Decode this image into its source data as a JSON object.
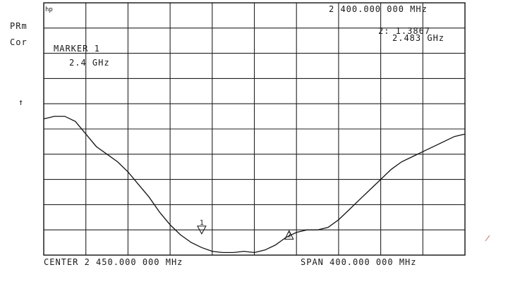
{
  "instrument": {
    "logo": "hp",
    "side_labels": [
      "PRm",
      "Cor"
    ],
    "up_arrow": "↑"
  },
  "header": {
    "marker_frequency": "2  400.000 000 MHz",
    "delta_marker_line1": "2: 1.3867",
    "delta_marker_line2": "2.483 GHz",
    "marker_title": "MARKER 1",
    "marker_value": "2.4 GHz"
  },
  "footer": {
    "center": "CENTER  2  450.000 000  MHz",
    "span": "SPAN    400.000 000  MHz"
  },
  "chart_data": {
    "type": "line",
    "title": "",
    "xlabel": "",
    "ylabel": "",
    "x_unit": "GHz",
    "xlim": [
      2.25,
      2.65
    ],
    "ylim": [
      0,
      10
    ],
    "grid": true,
    "grid_divisions": {
      "x": 10,
      "y": 10
    },
    "series": [
      {
        "x": [
          2.25,
          2.26,
          2.27,
          2.28,
          2.29,
          2.3,
          2.31,
          2.32,
          2.33,
          2.34,
          2.35,
          2.36,
          2.37,
          2.38,
          2.39,
          2.4,
          2.41,
          2.42,
          2.43,
          2.44,
          2.45,
          2.46,
          2.47,
          2.48,
          2.49,
          2.5,
          2.51,
          2.52,
          2.53,
          2.54,
          2.55,
          2.56,
          2.57,
          2.58,
          2.59,
          2.6,
          2.61,
          2.62,
          2.63,
          2.64,
          2.65
        ],
        "values": [
          5.4,
          5.5,
          5.5,
          5.3,
          4.8,
          4.3,
          4.0,
          3.7,
          3.3,
          2.8,
          2.3,
          1.7,
          1.2,
          0.8,
          0.5,
          0.3,
          0.15,
          0.1,
          0.1,
          0.15,
          0.1,
          0.2,
          0.4,
          0.7,
          0.9,
          1.0,
          1.0,
          1.1,
          1.4,
          1.8,
          2.2,
          2.6,
          3.0,
          3.4,
          3.7,
          3.9,
          4.1,
          4.3,
          4.5,
          4.7,
          4.8
        ]
      }
    ],
    "markers": [
      {
        "label": "1",
        "x": 2.4,
        "y": 0.9
      },
      {
        "label": "2",
        "x": 2.483,
        "y": 0.8
      }
    ]
  }
}
